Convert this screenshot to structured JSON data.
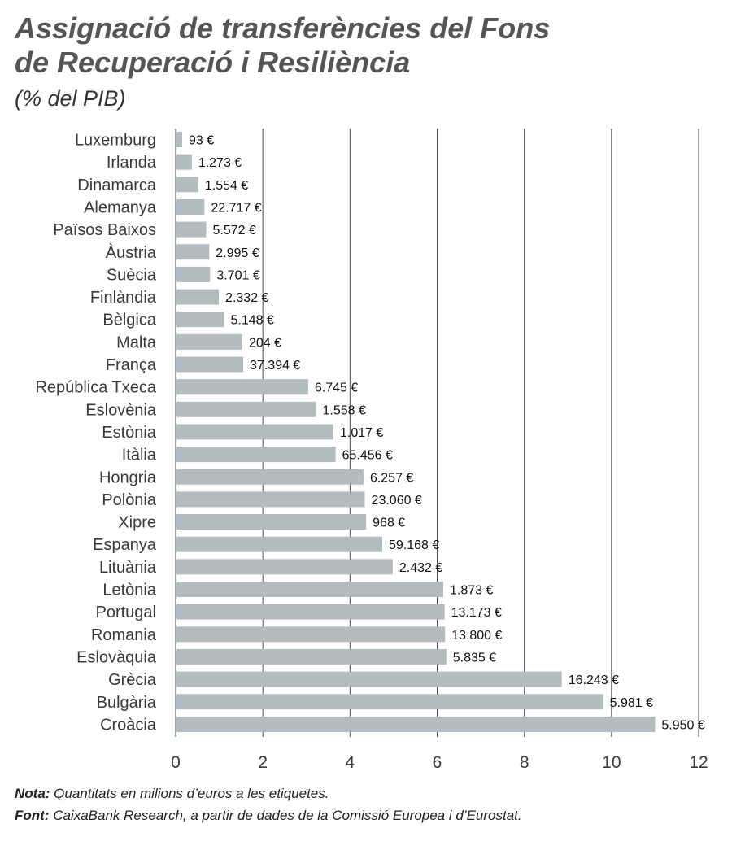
{
  "chart_data": {
    "type": "bar",
    "orientation": "horizontal",
    "title": [
      "Assignació de transferències del Fons",
      "de Recuperació i Resiliència"
    ],
    "subtitle": "(% del PIB)",
    "categories": [
      "Luxemburg",
      "Irlanda",
      "Dinamarca",
      "Alemanya",
      "Països Baixos",
      "Àustria",
      "Suècia",
      "Finlàndia",
      "Bèlgica",
      "Malta",
      "França",
      "República Txeca",
      "Eslovènia",
      "Estònia",
      "Itàlia",
      "Hongria",
      "Polònia",
      "Xipre",
      "Espanya",
      "Lituània",
      "Letònia",
      "Portugal",
      "Romania",
      "Eslovàquia",
      "Grècia",
      "Bulgària",
      "Croàcia"
    ],
    "values": [
      0.15,
      0.37,
      0.52,
      0.66,
      0.7,
      0.77,
      0.79,
      0.99,
      1.11,
      1.53,
      1.55,
      3.04,
      3.22,
      3.62,
      3.67,
      4.31,
      4.34,
      4.37,
      4.74,
      4.98,
      6.14,
      6.17,
      6.18,
      6.21,
      8.86,
      9.81,
      11.0
    ],
    "data_labels": [
      "93 €",
      "1.273 €",
      "1.554 €",
      "22.717 €",
      "5.572 €",
      "2.995 €",
      "3.701 €",
      "2.332 €",
      "5.148 €",
      "204 €",
      "37.394 €",
      "6.745 €",
      "1.558 €",
      "1.017 €",
      "65.456 €",
      "6.257 €",
      "23.060 €",
      "968 €",
      "59.168 €",
      "2.432 €",
      "1.873 €",
      "13.173 €",
      "13.800 €",
      "5.835 €",
      "16.243 €",
      "5.981 €",
      "5.950 €"
    ],
    "xlim": [
      0,
      12
    ],
    "x_ticks": [
      "0",
      "2",
      "4",
      "6",
      "8",
      "10",
      "12"
    ],
    "grid": "vertical",
    "bar_color": "#b3bcbf",
    "grid_color": "#4a4a4a"
  },
  "notes": {
    "nota_label": "Nota:",
    "nota_text": " Quantitats en milions d’euros a les etiquetes.",
    "font_label": "Font:",
    "font_text": " CaixaBank Research, a partir de dades de la Comissió Europea i d’Eurostat."
  }
}
